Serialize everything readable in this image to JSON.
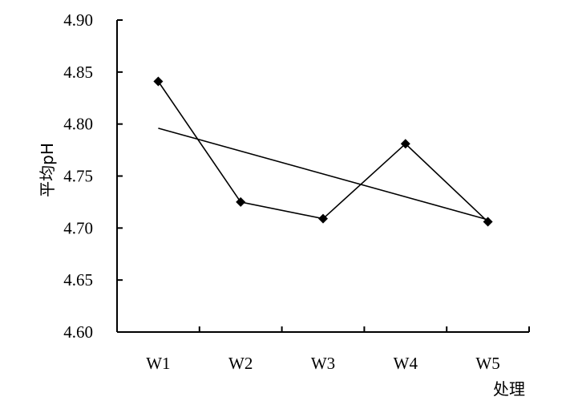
{
  "chart_data": {
    "type": "line",
    "categories": [
      "W1",
      "W2",
      "W3",
      "W4",
      "W5"
    ],
    "series": [
      {
        "values": [
          4.841,
          4.725,
          4.709,
          4.781,
          4.706
        ],
        "marker": "diamond",
        "color": "#000000"
      }
    ],
    "trendline": {
      "type": "linear",
      "start": 4.796,
      "end": 4.708,
      "color": "#000000"
    },
    "xlabel": "处理",
    "ylabel": "平均pH",
    "ylim": [
      4.6,
      4.9
    ],
    "yticks": [
      "4.60",
      "4.65",
      "4.70",
      "4.75",
      "4.80",
      "4.85",
      "4.90"
    ],
    "grid": false,
    "legend": "none"
  }
}
